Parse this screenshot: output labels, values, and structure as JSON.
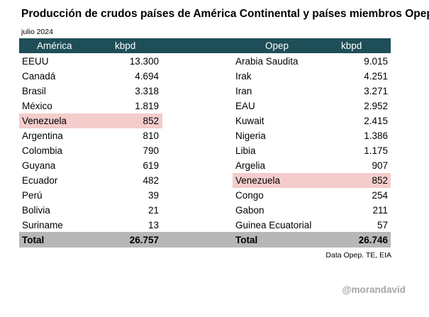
{
  "title": "Producción de crudos países de América Continental y países miembros Opep",
  "subtitle": "julio 2024",
  "source": "Data Opep. TE, EIA",
  "watermark": "@morandavid",
  "colors": {
    "header_bg": "#1e4e58",
    "highlight": "#f4cccc",
    "total_bg": "#b7b7b7"
  },
  "chart_data": [
    {
      "type": "table",
      "columns": [
        "América",
        "kbpd"
      ],
      "rows": [
        {
          "label": "EEUU",
          "value": "13.300"
        },
        {
          "label": "Canadá",
          "value": "4.694"
        },
        {
          "label": "Brasil",
          "value": "3.318"
        },
        {
          "label": "México",
          "value": "1.819"
        },
        {
          "label": "Venezuela",
          "value": "852",
          "highlighted": true
        },
        {
          "label": "Argentina",
          "value": "810"
        },
        {
          "label": "Colombia",
          "value": "790"
        },
        {
          "label": "Guyana",
          "value": "619"
        },
        {
          "label": "Ecuador",
          "value": "482"
        },
        {
          "label": "Perú",
          "value": "39"
        },
        {
          "label": "Bolivia",
          "value": "21"
        },
        {
          "label": "Suriname",
          "value": "13"
        }
      ],
      "total": {
        "label": "Total",
        "value": "26.757"
      }
    },
    {
      "type": "table",
      "columns": [
        "Opep",
        "kbpd"
      ],
      "rows": [
        {
          "label": "Arabia Saudita",
          "value": "9.015"
        },
        {
          "label": "Irak",
          "value": "4.251"
        },
        {
          "label": "Iran",
          "value": "3.271"
        },
        {
          "label": "EAU",
          "value": "2.952"
        },
        {
          "label": "Kuwait",
          "value": "2.415"
        },
        {
          "label": "Nigeria",
          "value": "1.386"
        },
        {
          "label": "Libia",
          "value": "1.175"
        },
        {
          "label": "Argelia",
          "value": "907"
        },
        {
          "label": "Venezuela",
          "value": "852",
          "highlighted": true
        },
        {
          "label": "Congo",
          "value": "254"
        },
        {
          "label": "Gabon",
          "value": "211"
        },
        {
          "label": "Guinea Ecuatorial",
          "value": "57"
        }
      ],
      "total": {
        "label": "Total",
        "value": "26.746"
      }
    }
  ]
}
